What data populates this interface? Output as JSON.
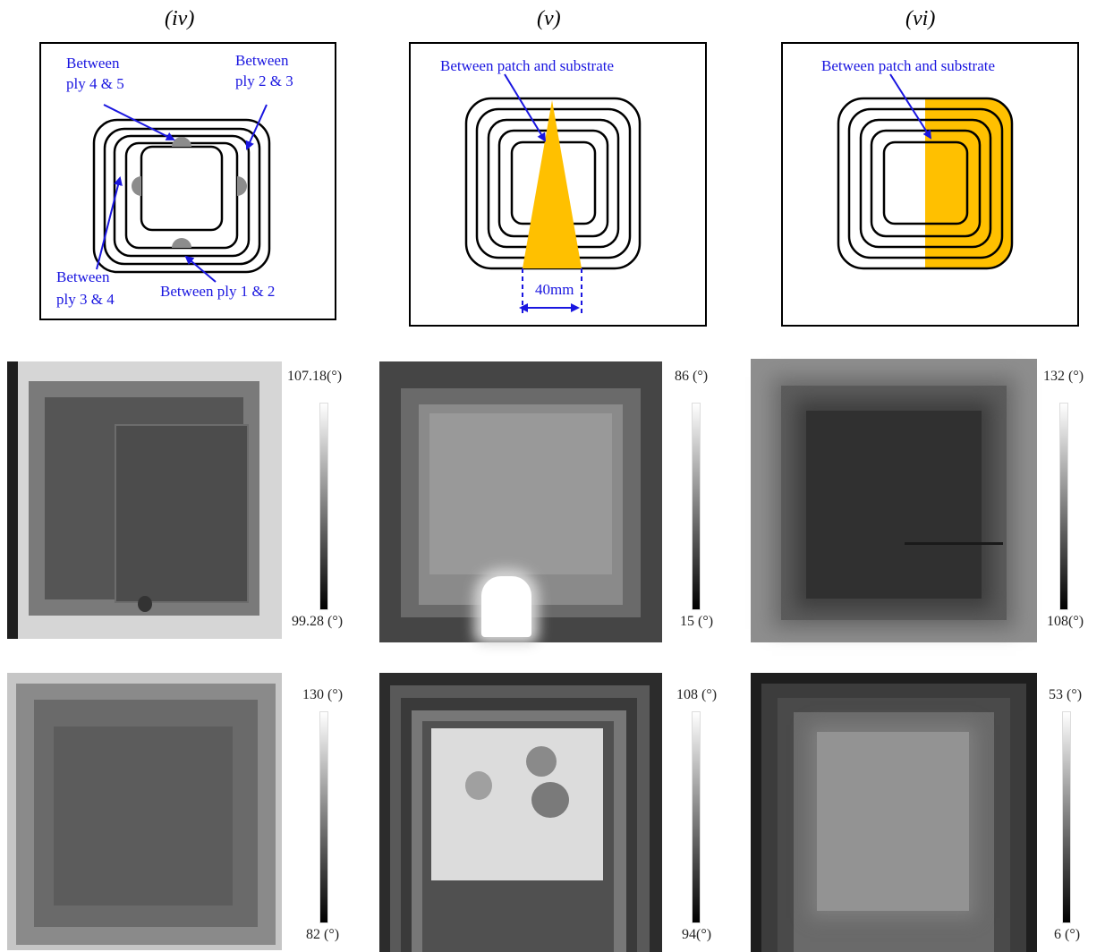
{
  "columns": [
    {
      "title": "(iv)",
      "schematic": {
        "labels": [
          "Between",
          "ply 4 & 5",
          "Between",
          "ply 2 & 3",
          "Between",
          "ply 3 & 4",
          "Between ply 1 & 2"
        ]
      }
    },
    {
      "title": "(v)",
      "schematic": {
        "labels": [
          "Between patch and substrate",
          "40mm"
        ]
      }
    },
    {
      "title": "(vi)",
      "schematic": {
        "labels": [
          "Between patch and substrate"
        ]
      }
    }
  ],
  "colorbars": [
    {
      "max": "107.18(°)",
      "min": "99.28 (°)"
    },
    {
      "max": "86 (°)",
      "min": "15 (°)"
    },
    {
      "max": "132 (°)",
      "min": "108(°)"
    },
    {
      "max": "130 (°)",
      "min": "82 (°)"
    },
    {
      "max": "108 (°)",
      "min": "94(°)"
    },
    {
      "max": "53 (°)",
      "min": "6 (°)"
    }
  ],
  "colors": {
    "label_blue": "#1a16e0",
    "defect_gray": "#8c8c8c",
    "defect_orange": "#ffc000"
  }
}
